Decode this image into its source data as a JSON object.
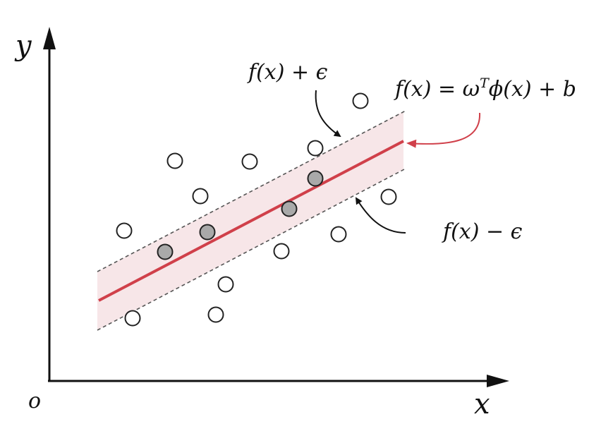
{
  "axes": {
    "y_label": "y",
    "x_label": "x",
    "origin_label": "o"
  },
  "annotations": {
    "upper": "f(x) + ϵ",
    "lower": "f(x) − ϵ",
    "formula": {
      "main": "f(x) = ω",
      "superscript": "T",
      "rest": "ϕ(x) + b"
    }
  }
}
